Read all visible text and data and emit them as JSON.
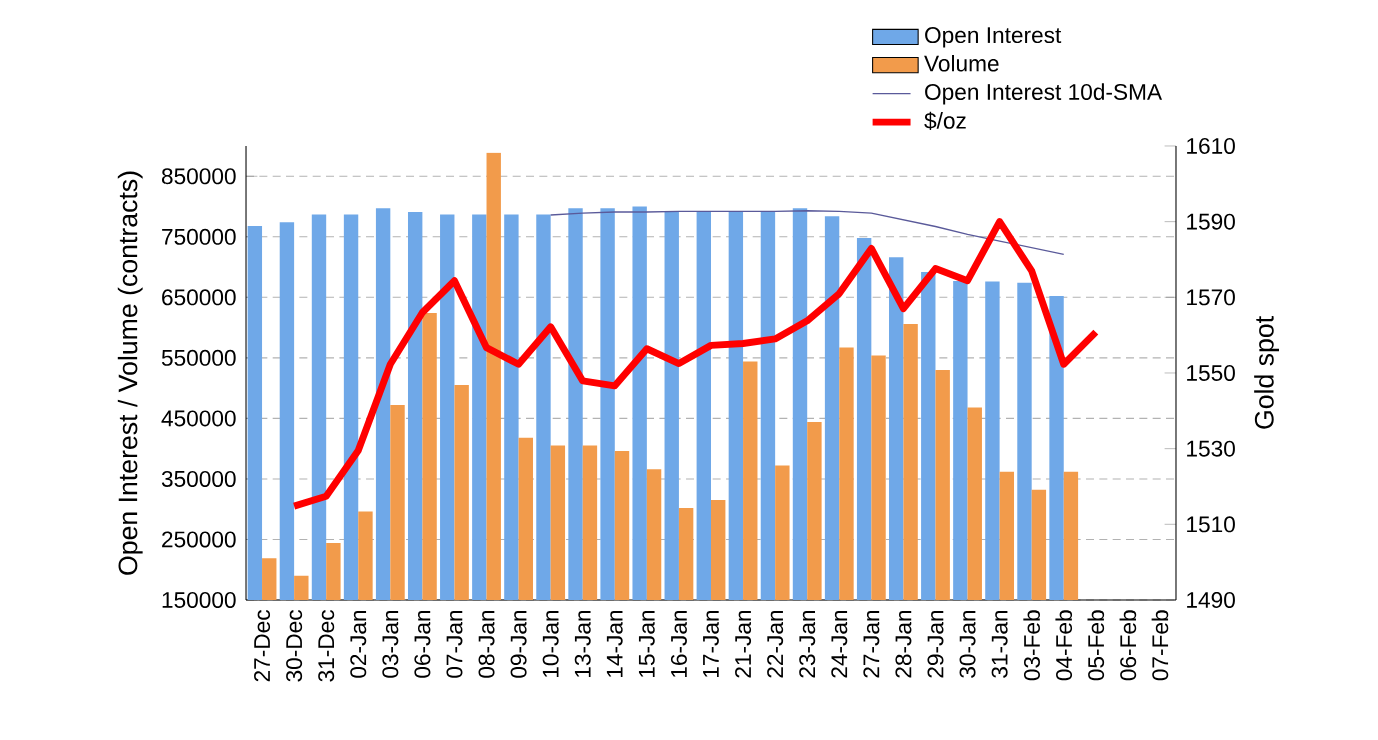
{
  "chart_data": {
    "type": "bar",
    "categories": [
      "27-Dec",
      "30-Dec",
      "31-Dec",
      "02-Jan",
      "03-Jan",
      "06-Jan",
      "07-Jan",
      "08-Jan",
      "09-Jan",
      "10-Jan",
      "13-Jan",
      "14-Jan",
      "15-Jan",
      "16-Jan",
      "17-Jan",
      "21-Jan",
      "22-Jan",
      "23-Jan",
      "24-Jan",
      "27-Jan",
      "28-Jan",
      "29-Jan",
      "30-Jan",
      "31-Jan",
      "03-Feb",
      "04-Feb",
      "05-Feb",
      "06-Feb",
      "07-Feb"
    ],
    "series": [
      {
        "name": "Open Interest",
        "color": "#6fa8e8",
        "values": [
          768000,
          774000,
          787000,
          787000,
          797000,
          791000,
          787000,
          787000,
          787000,
          787000,
          797000,
          797000,
          800000,
          791000,
          791000,
          791000,
          791000,
          797000,
          784000,
          748000,
          716000,
          692000,
          677000,
          676000,
          674000,
          652000,
          null,
          null,
          null
        ]
      },
      {
        "name": "Volume",
        "color": "#f29b4b",
        "values": [
          219000,
          190000,
          244000,
          296000,
          472000,
          624000,
          505000,
          889000,
          418000,
          405000,
          405000,
          396000,
          366000,
          302000,
          315000,
          544000,
          372000,
          444000,
          567000,
          554000,
          606000,
          530000,
          468000,
          362000,
          332000,
          362000,
          null,
          null,
          null
        ]
      },
      {
        "name": "Open Interest 10d-SMA",
        "type": "line",
        "color": "#5a5a9a",
        "values": [
          null,
          null,
          null,
          null,
          null,
          null,
          null,
          null,
          null,
          786000,
          789000,
          791000,
          791000,
          792000,
          792000,
          792000,
          792000,
          793000,
          792000,
          789000,
          778000,
          767000,
          754000,
          743000,
          732000,
          721000,
          null,
          null,
          null
        ]
      },
      {
        "name": "$/oz",
        "type": "line",
        "axis": "y2",
        "color": "#ff0000",
        "values": [
          null,
          1514.8,
          1517.4,
          1529.5,
          1552.3,
          1566,
          1574.4,
          1556.7,
          1552.3,
          1562.2,
          1547.9,
          1546.6,
          1556.4,
          1552.5,
          1557.3,
          1557.8,
          1559,
          1563.8,
          1571,
          1582.9,
          1567,
          1577.6,
          1574.4,
          1590,
          1577,
          1552.3,
          1560.8,
          null,
          null
        ]
      }
    ],
    "ylabel": "Open Interest / Volume (contracts)",
    "y2label": "Gold spot",
    "ylim": [
      150000,
      900000
    ],
    "yticks": [
      150000,
      250000,
      350000,
      450000,
      550000,
      650000,
      750000,
      850000
    ],
    "y2lim": [
      1490,
      1610
    ],
    "y2ticks": [
      1490,
      1510,
      1530,
      1550,
      1570,
      1590,
      1610
    ],
    "grid": "y",
    "legend": "top right"
  }
}
